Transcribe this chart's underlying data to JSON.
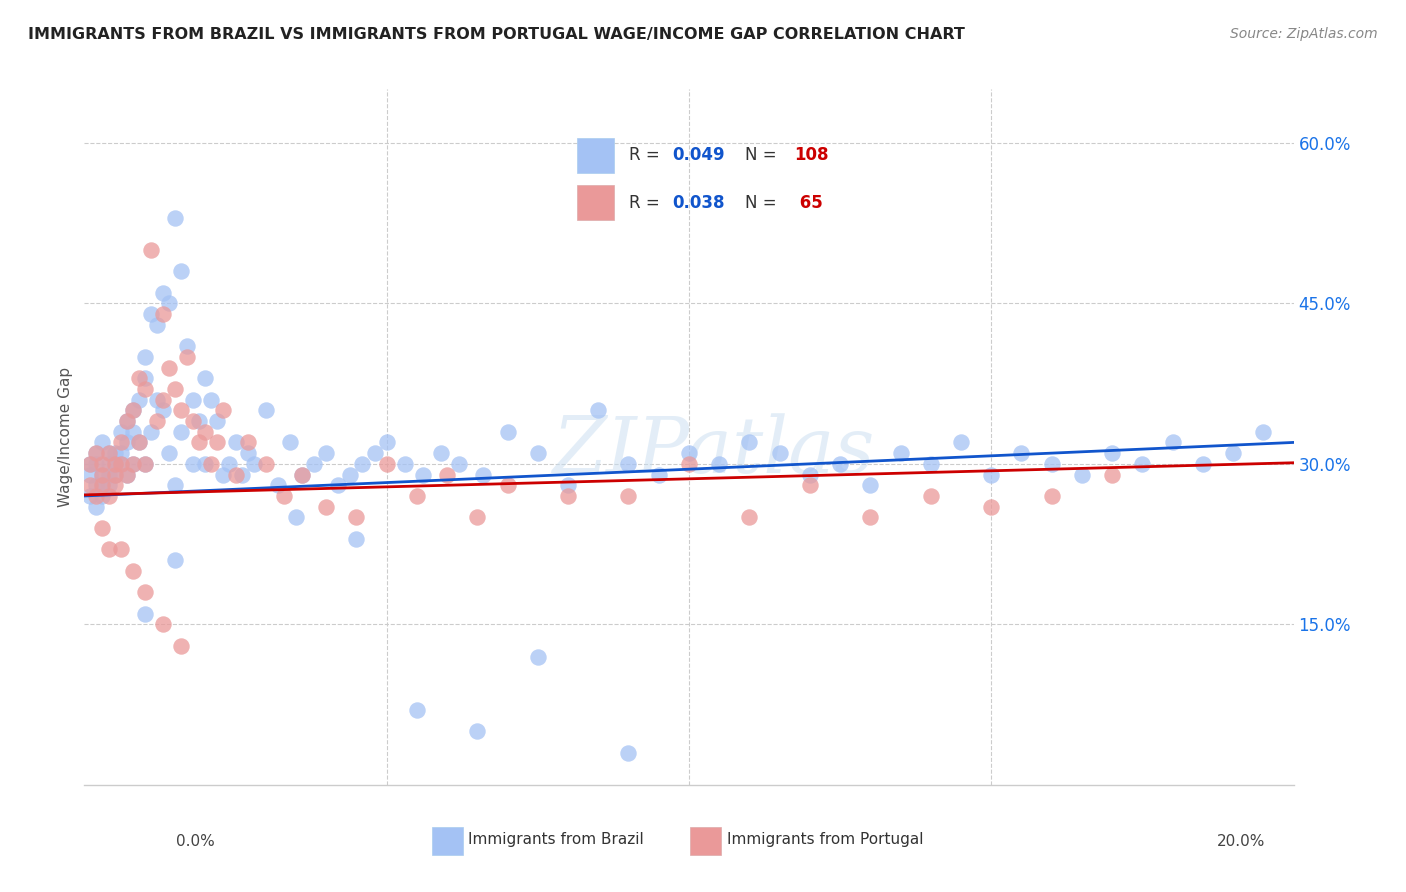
{
  "title": "IMMIGRANTS FROM BRAZIL VS IMMIGRANTS FROM PORTUGAL WAGE/INCOME GAP CORRELATION CHART",
  "source": "Source: ZipAtlas.com",
  "ylabel": "Wage/Income Gap",
  "x_min": 0.0,
  "x_max": 0.2,
  "y_min": 0.0,
  "y_max": 0.65,
  "brazil_color": "#a4c2f4",
  "portugal_color": "#ea9999",
  "brazil_R": 0.049,
  "brazil_N": 108,
  "portugal_R": 0.038,
  "portugal_N": 65,
  "brazil_line_color": "#1155cc",
  "portugal_line_color": "#cc0000",
  "watermark": "ZIPatlas",
  "brazil_x": [
    0.001,
    0.001,
    0.001,
    0.002,
    0.002,
    0.002,
    0.002,
    0.003,
    0.003,
    0.003,
    0.003,
    0.004,
    0.004,
    0.004,
    0.004,
    0.005,
    0.005,
    0.005,
    0.006,
    0.006,
    0.006,
    0.007,
    0.007,
    0.007,
    0.008,
    0.008,
    0.008,
    0.009,
    0.009,
    0.01,
    0.01,
    0.01,
    0.011,
    0.011,
    0.012,
    0.012,
    0.013,
    0.013,
    0.014,
    0.014,
    0.015,
    0.015,
    0.016,
    0.016,
    0.017,
    0.018,
    0.018,
    0.019,
    0.02,
    0.02,
    0.021,
    0.022,
    0.023,
    0.024,
    0.025,
    0.026,
    0.027,
    0.028,
    0.03,
    0.032,
    0.034,
    0.036,
    0.038,
    0.04,
    0.042,
    0.044,
    0.046,
    0.048,
    0.05,
    0.053,
    0.056,
    0.059,
    0.062,
    0.066,
    0.07,
    0.075,
    0.08,
    0.085,
    0.09,
    0.095,
    0.1,
    0.105,
    0.11,
    0.115,
    0.12,
    0.125,
    0.13,
    0.135,
    0.14,
    0.145,
    0.15,
    0.155,
    0.16,
    0.165,
    0.17,
    0.175,
    0.18,
    0.185,
    0.19,
    0.195,
    0.01,
    0.015,
    0.035,
    0.045,
    0.055,
    0.065,
    0.075,
    0.09
  ],
  "brazil_y": [
    0.27,
    0.3,
    0.29,
    0.28,
    0.31,
    0.26,
    0.3,
    0.29,
    0.28,
    0.32,
    0.27,
    0.3,
    0.29,
    0.31,
    0.28,
    0.3,
    0.31,
    0.29,
    0.33,
    0.31,
    0.3,
    0.34,
    0.32,
    0.29,
    0.35,
    0.33,
    0.3,
    0.36,
    0.32,
    0.4,
    0.38,
    0.3,
    0.44,
    0.33,
    0.43,
    0.36,
    0.46,
    0.35,
    0.45,
    0.31,
    0.53,
    0.28,
    0.48,
    0.33,
    0.41,
    0.36,
    0.3,
    0.34,
    0.38,
    0.3,
    0.36,
    0.34,
    0.29,
    0.3,
    0.32,
    0.29,
    0.31,
    0.3,
    0.35,
    0.28,
    0.32,
    0.29,
    0.3,
    0.31,
    0.28,
    0.29,
    0.3,
    0.31,
    0.32,
    0.3,
    0.29,
    0.31,
    0.3,
    0.29,
    0.33,
    0.31,
    0.28,
    0.35,
    0.3,
    0.29,
    0.31,
    0.3,
    0.32,
    0.31,
    0.29,
    0.3,
    0.28,
    0.31,
    0.3,
    0.32,
    0.29,
    0.31,
    0.3,
    0.29,
    0.31,
    0.3,
    0.32,
    0.3,
    0.31,
    0.33,
    0.16,
    0.21,
    0.25,
    0.23,
    0.07,
    0.05,
    0.12,
    0.03
  ],
  "portugal_x": [
    0.001,
    0.001,
    0.002,
    0.002,
    0.003,
    0.003,
    0.003,
    0.004,
    0.004,
    0.005,
    0.005,
    0.005,
    0.006,
    0.006,
    0.007,
    0.007,
    0.008,
    0.008,
    0.009,
    0.009,
    0.01,
    0.01,
    0.011,
    0.012,
    0.013,
    0.013,
    0.014,
    0.015,
    0.016,
    0.017,
    0.018,
    0.019,
    0.02,
    0.021,
    0.022,
    0.023,
    0.025,
    0.027,
    0.03,
    0.033,
    0.036,
    0.04,
    0.045,
    0.05,
    0.055,
    0.06,
    0.065,
    0.07,
    0.08,
    0.09,
    0.1,
    0.11,
    0.12,
    0.13,
    0.14,
    0.15,
    0.16,
    0.17,
    0.003,
    0.004,
    0.006,
    0.008,
    0.01,
    0.013,
    0.016
  ],
  "portugal_y": [
    0.28,
    0.3,
    0.27,
    0.31,
    0.29,
    0.28,
    0.3,
    0.27,
    0.31,
    0.29,
    0.3,
    0.28,
    0.32,
    0.3,
    0.34,
    0.29,
    0.35,
    0.3,
    0.38,
    0.32,
    0.37,
    0.3,
    0.5,
    0.34,
    0.44,
    0.36,
    0.39,
    0.37,
    0.35,
    0.4,
    0.34,
    0.32,
    0.33,
    0.3,
    0.32,
    0.35,
    0.29,
    0.32,
    0.3,
    0.27,
    0.29,
    0.26,
    0.25,
    0.3,
    0.27,
    0.29,
    0.25,
    0.28,
    0.27,
    0.27,
    0.3,
    0.25,
    0.28,
    0.25,
    0.27,
    0.26,
    0.27,
    0.29,
    0.24,
    0.22,
    0.22,
    0.2,
    0.18,
    0.15,
    0.13
  ]
}
